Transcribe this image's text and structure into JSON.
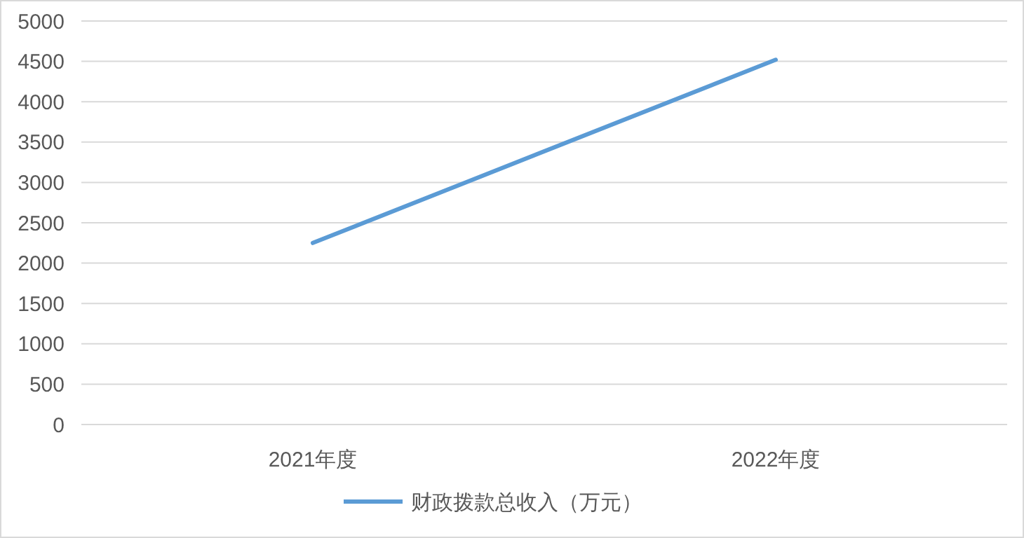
{
  "chart_data": {
    "type": "line",
    "categories": [
      "2021年度",
      "2022年度"
    ],
    "series": [
      {
        "name": "财政拨款总收入（万元）",
        "color": "#5b9bd5",
        "values": [
          2250,
          4520
        ]
      }
    ],
    "ylim": [
      0,
      5000
    ],
    "yticks": [
      0,
      500,
      1000,
      1500,
      2000,
      2500,
      3000,
      3500,
      4000,
      4500,
      5000
    ],
    "grid": "y",
    "legend": "bottom",
    "marker": "none",
    "line_style": "solid"
  }
}
